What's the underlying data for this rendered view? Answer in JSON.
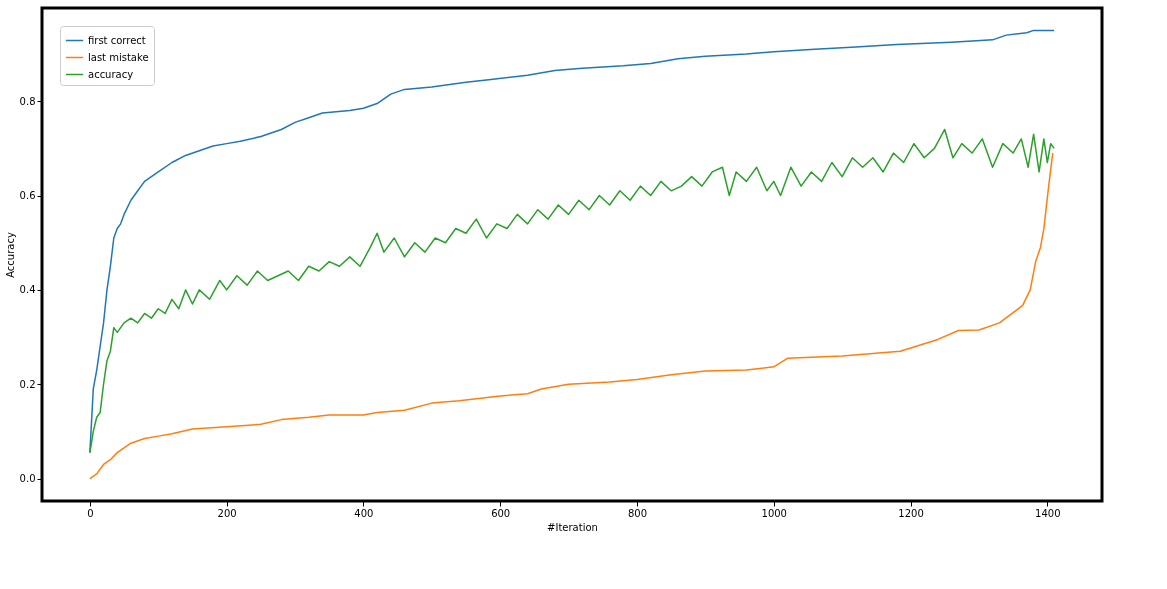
{
  "chart_data": {
    "type": "line",
    "xlabel": "#Iteration",
    "ylabel": "Accuracy",
    "xlim": [
      -70,
      1480
    ],
    "ylim": [
      -0.0475,
      0.9975
    ],
    "xticks": [
      0,
      200,
      400,
      600,
      800,
      1000,
      1200,
      1400
    ],
    "yticks": [
      {
        "value": 0,
        "label": "0.0"
      },
      0.2,
      0.4,
      0.6,
      0.8
    ],
    "grid": false,
    "legend": "top left",
    "line_style": "solid",
    "marker": "none",
    "series": [
      {
        "name": "first correct",
        "color": "#1f77b4",
        "x": [
          0,
          5,
          10,
          15,
          20,
          25,
          30,
          35,
          40,
          45,
          50,
          60,
          70,
          80,
          100,
          120,
          140,
          160,
          180,
          200,
          220,
          250,
          280,
          300,
          320,
          340,
          380,
          400,
          420,
          440,
          460,
          500,
          550,
          580,
          640,
          680,
          720,
          780,
          820,
          860,
          900,
          960,
          1000,
          1060,
          1120,
          1180,
          1260,
          1320,
          1340,
          1370,
          1380,
          1410
        ],
        "values": [
          0.055,
          0.19,
          0.23,
          0.28,
          0.33,
          0.4,
          0.45,
          0.51,
          0.53,
          0.54,
          0.56,
          0.59,
          0.61,
          0.63,
          0.65,
          0.67,
          0.685,
          0.695,
          0.705,
          0.71,
          0.715,
          0.725,
          0.74,
          0.755,
          0.765,
          0.775,
          0.78,
          0.785,
          0.795,
          0.815,
          0.825,
          0.83,
          0.84,
          0.845,
          0.855,
          0.865,
          0.87,
          0.875,
          0.88,
          0.89,
          0.895,
          0.9,
          0.905,
          0.91,
          0.915,
          0.92,
          0.925,
          0.93,
          0.94,
          0.945,
          0.95,
          0.95
        ]
      },
      {
        "name": "last mistake",
        "color": "#ff7f0e",
        "x": [
          0,
          10,
          20,
          30,
          40,
          50,
          60,
          80,
          100,
          120,
          150,
          200,
          250,
          280,
          320,
          350,
          400,
          420,
          460,
          500,
          540,
          600,
          640,
          660,
          700,
          760,
          800,
          850,
          900,
          960,
          1000,
          1020,
          1100,
          1185,
          1240,
          1270,
          1300,
          1330,
          1364,
          1375,
          1383,
          1390,
          1395,
          1402,
          1408
        ],
        "values": [
          0.0,
          0.01,
          0.03,
          0.04,
          0.055,
          0.065,
          0.075,
          0.085,
          0.09,
          0.095,
          0.105,
          0.11,
          0.115,
          0.125,
          0.13,
          0.135,
          0.135,
          0.14,
          0.145,
          0.16,
          0.165,
          0.175,
          0.18,
          0.19,
          0.2,
          0.205,
          0.21,
          0.22,
          0.228,
          0.23,
          0.237,
          0.255,
          0.26,
          0.27,
          0.295,
          0.314,
          0.315,
          0.33,
          0.367,
          0.4,
          0.46,
          0.49,
          0.53,
          0.62,
          0.69
        ]
      },
      {
        "name": "accuracy",
        "color": "#2ca02c",
        "x": [
          0,
          5,
          10,
          15,
          20,
          25,
          30,
          35,
          40,
          50,
          60,
          70,
          80,
          90,
          100,
          110,
          120,
          130,
          140,
          150,
          160,
          175,
          190,
          200,
          215,
          230,
          245,
          260,
          275,
          290,
          305,
          320,
          335,
          350,
          365,
          380,
          395,
          410,
          420,
          430,
          445,
          460,
          475,
          490,
          505,
          520,
          535,
          550,
          565,
          580,
          595,
          610,
          625,
          640,
          655,
          670,
          685,
          700,
          715,
          730,
          745,
          760,
          775,
          790,
          805,
          820,
          835,
          850,
          865,
          880,
          895,
          910,
          925,
          935,
          945,
          960,
          975,
          990,
          1000,
          1010,
          1025,
          1040,
          1055,
          1070,
          1085,
          1100,
          1115,
          1130,
          1145,
          1160,
          1175,
          1190,
          1205,
          1220,
          1235,
          1250,
          1262,
          1275,
          1290,
          1305,
          1320,
          1335,
          1350,
          1362,
          1372,
          1380,
          1388,
          1395,
          1400,
          1405,
          1410
        ],
        "values": [
          0.055,
          0.1,
          0.13,
          0.14,
          0.2,
          0.25,
          0.27,
          0.32,
          0.31,
          0.33,
          0.34,
          0.33,
          0.35,
          0.34,
          0.36,
          0.35,
          0.38,
          0.36,
          0.4,
          0.37,
          0.4,
          0.38,
          0.42,
          0.4,
          0.43,
          0.41,
          0.44,
          0.42,
          0.43,
          0.44,
          0.42,
          0.45,
          0.44,
          0.46,
          0.45,
          0.47,
          0.45,
          0.49,
          0.52,
          0.48,
          0.51,
          0.47,
          0.5,
          0.48,
          0.51,
          0.5,
          0.53,
          0.52,
          0.55,
          0.51,
          0.54,
          0.53,
          0.56,
          0.54,
          0.57,
          0.55,
          0.58,
          0.56,
          0.59,
          0.57,
          0.6,
          0.58,
          0.61,
          0.59,
          0.62,
          0.6,
          0.63,
          0.61,
          0.62,
          0.64,
          0.62,
          0.65,
          0.66,
          0.6,
          0.65,
          0.63,
          0.66,
          0.61,
          0.63,
          0.6,
          0.66,
          0.62,
          0.65,
          0.63,
          0.67,
          0.64,
          0.68,
          0.66,
          0.68,
          0.65,
          0.69,
          0.67,
          0.71,
          0.68,
          0.7,
          0.74,
          0.68,
          0.71,
          0.69,
          0.72,
          0.66,
          0.71,
          0.69,
          0.72,
          0.66,
          0.73,
          0.65,
          0.72,
          0.67,
          0.71,
          0.7
        ]
      }
    ]
  }
}
